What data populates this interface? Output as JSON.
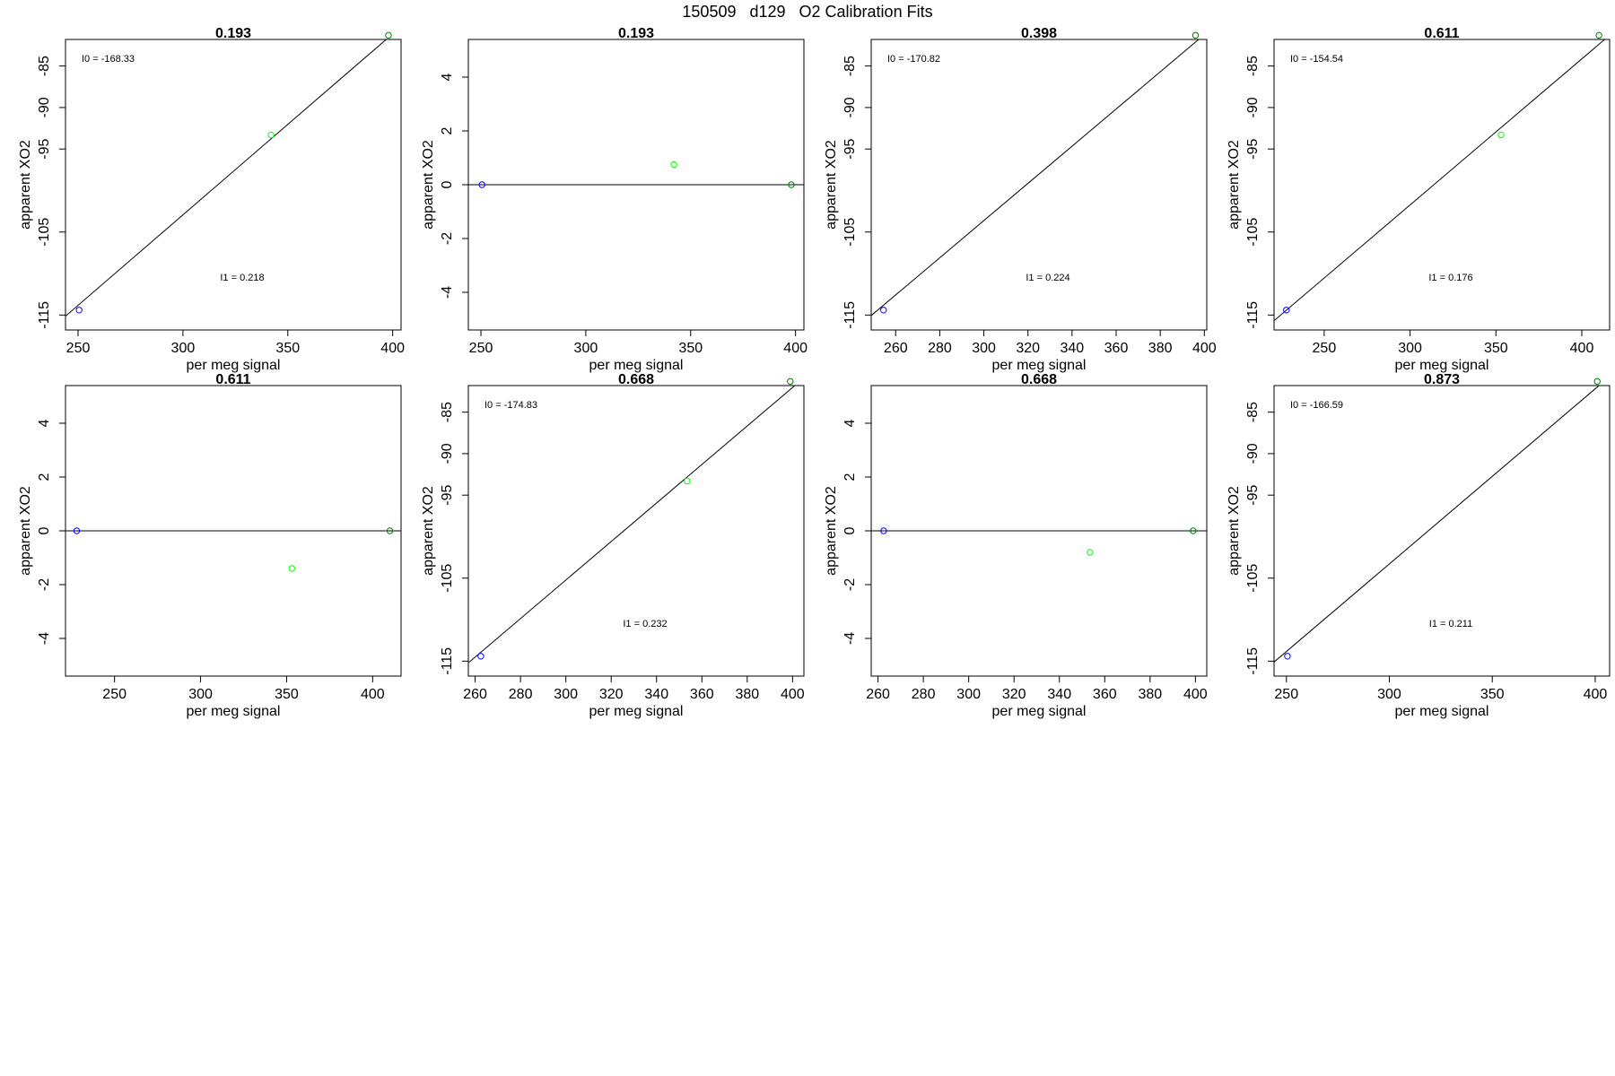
{
  "page": {
    "title": "150509   d129   O2 Calibration Fits"
  },
  "colors": {
    "standard_low": "#0000ff",
    "standard_mid": "#00ff00",
    "standard_high": "#008000",
    "fit_line": "#000000",
    "frame": "#000000",
    "background": "#ffffff"
  },
  "chart_data": [
    {
      "type": "scatter",
      "title": "0.193",
      "xlabel": "per meg signal",
      "ylabel": "apparent XO2",
      "xlim": [
        244,
        404
      ],
      "ylim": [
        -116.8,
        -81.8
      ],
      "xticks": [
        250,
        300,
        350,
        400
      ],
      "yticks": [
        -115,
        -105,
        -95,
        -90,
        -85
      ],
      "series": [
        {
          "color": "#0000ff",
          "points": [
            [
              250.5,
              -114.4
            ]
          ]
        },
        {
          "color": "#00ff00",
          "points": [
            [
              342,
              -93.3
            ]
          ]
        },
        {
          "color": "#008000",
          "points": [
            [
              398,
              -81.3
            ]
          ]
        }
      ],
      "fit_line": {
        "intercept": -168.33,
        "slope": 0.218
      },
      "annotations": {
        "intercept_label": "I0 =  -168.33",
        "slope_label": "I1 =  0.218"
      },
      "grid": false
    },
    {
      "type": "scatter",
      "title": "0.193",
      "xlabel": "per meg signal",
      "ylabel": "apparent XO2",
      "xlim": [
        244,
        404
      ],
      "ylim": [
        -5.4,
        5.4
      ],
      "xticks": [
        250,
        300,
        350,
        400
      ],
      "yticks": [
        -4,
        -2,
        0,
        2,
        4
      ],
      "series": [
        {
          "color": "#0000ff",
          "points": [
            [
              250.5,
              0
            ]
          ]
        },
        {
          "color": "#00ff00",
          "points": [
            [
              342,
              0.75
            ]
          ]
        },
        {
          "color": "#008000",
          "points": [
            [
              398,
              0
            ]
          ]
        }
      ],
      "fit_line": {
        "intercept": 0,
        "slope": 0
      },
      "annotations": {},
      "grid": false
    },
    {
      "type": "scatter",
      "title": "0.398",
      "xlabel": "per meg signal",
      "ylabel": "apparent XO2",
      "xlim": [
        248.9,
        401.1
      ],
      "ylim": [
        -116.8,
        -81.8
      ],
      "xticks": [
        260,
        280,
        300,
        320,
        340,
        360,
        380,
        400
      ],
      "yticks": [
        -115,
        -105,
        -95,
        -90,
        -85
      ],
      "series": [
        {
          "color": "#0000ff",
          "points": [
            [
              254.5,
              -114.4
            ]
          ]
        },
        {
          "color": "#00ff00",
          "points": []
        },
        {
          "color": "#008000",
          "points": [
            [
              396,
              -81.3
            ]
          ]
        }
      ],
      "fit_line": {
        "intercept": -170.82,
        "slope": 0.224
      },
      "annotations": {
        "intercept_label": "I0 =  -170.82",
        "slope_label": "I1 =  0.224"
      },
      "grid": false
    },
    {
      "type": "scatter",
      "title": "0.611",
      "xlabel": "per meg signal",
      "ylabel": "apparent XO2",
      "xlim": [
        220.8,
        416.2
      ],
      "ylim": [
        -116.8,
        -81.8
      ],
      "xticks": [
        250,
        300,
        350,
        400
      ],
      "yticks": [
        -115,
        -105,
        -95,
        -90,
        -85
      ],
      "series": [
        {
          "color": "#0000ff",
          "points": [
            [
              228,
              -114.4
            ]
          ]
        },
        {
          "color": "#00ff00",
          "points": [
            [
              353,
              -93.3
            ]
          ]
        },
        {
          "color": "#008000",
          "points": [
            [
              410,
              -81.3
            ]
          ]
        }
      ],
      "fit_line": {
        "intercept": -154.54,
        "slope": 0.176
      },
      "annotations": {
        "intercept_label": "I0 =  -154.54",
        "slope_label": "I1 =  0.176"
      },
      "grid": false
    },
    {
      "type": "scatter",
      "title": "0.611",
      "xlabel": "per meg signal",
      "ylabel": "apparent XO2",
      "xlim": [
        221.5,
        416.5
      ],
      "ylim": [
        -5.4,
        5.4
      ],
      "xticks": [
        250,
        300,
        350,
        400
      ],
      "yticks": [
        -4,
        -2,
        0,
        2,
        4
      ],
      "series": [
        {
          "color": "#0000ff",
          "points": [
            [
              228,
              0
            ]
          ]
        },
        {
          "color": "#00ff00",
          "points": [
            [
              353,
              -1.4
            ]
          ]
        },
        {
          "color": "#008000",
          "points": [
            [
              410,
              0
            ]
          ]
        }
      ],
      "fit_line": {
        "intercept": 0,
        "slope": 0
      },
      "annotations": {},
      "grid": false
    },
    {
      "type": "scatter",
      "title": "0.668",
      "xlabel": "per meg signal",
      "ylabel": "apparent XO2",
      "xlim": [
        257,
        405
      ],
      "ylim": [
        -116.8,
        -81.8
      ],
      "xticks": [
        260,
        280,
        300,
        320,
        340,
        360,
        380,
        400
      ],
      "yticks": [
        -115,
        -105,
        -95,
        -90,
        -85
      ],
      "series": [
        {
          "color": "#0000ff",
          "points": [
            [
              262.5,
              -114.4
            ]
          ]
        },
        {
          "color": "#00ff00",
          "points": [
            [
              353.5,
              -93.3
            ]
          ]
        },
        {
          "color": "#008000",
          "points": [
            [
              399,
              -81.3
            ]
          ]
        }
      ],
      "fit_line": {
        "intercept": -174.83,
        "slope": 0.232
      },
      "annotations": {
        "intercept_label": "I0 =  -174.83",
        "slope_label": "I1 =  0.232"
      },
      "grid": false
    },
    {
      "type": "scatter",
      "title": "0.668",
      "xlabel": "per meg signal",
      "ylabel": "apparent XO2",
      "xlim": [
        257,
        405
      ],
      "ylim": [
        -5.4,
        5.4
      ],
      "xticks": [
        260,
        280,
        300,
        320,
        340,
        360,
        380,
        400
      ],
      "yticks": [
        -4,
        -2,
        0,
        2,
        4
      ],
      "series": [
        {
          "color": "#0000ff",
          "points": [
            [
              262.5,
              0
            ]
          ]
        },
        {
          "color": "#00ff00",
          "points": [
            [
              353.5,
              -0.8
            ]
          ]
        },
        {
          "color": "#008000",
          "points": [
            [
              399,
              0
            ]
          ]
        }
      ],
      "fit_line": {
        "intercept": 0,
        "slope": 0
      },
      "annotations": {},
      "grid": false
    },
    {
      "type": "scatter",
      "title": "0.873",
      "xlabel": "per meg signal",
      "ylabel": "apparent XO2",
      "xlim": [
        244,
        407
      ],
      "ylim": [
        -116.8,
        -81.8
      ],
      "xticks": [
        250,
        300,
        350,
        400
      ],
      "yticks": [
        -115,
        -105,
        -95,
        -90,
        -85
      ],
      "series": [
        {
          "color": "#0000ff",
          "points": [
            [
              250.5,
              -114.4
            ]
          ]
        },
        {
          "color": "#00ff00",
          "points": []
        },
        {
          "color": "#008000",
          "points": [
            [
              401,
              -81.3
            ]
          ]
        }
      ],
      "fit_line": {
        "intercept": -166.59,
        "slope": 0.211
      },
      "annotations": {
        "intercept_label": "I0 =  -166.59",
        "slope_label": "I1 =  0.211"
      },
      "grid": false
    }
  ]
}
